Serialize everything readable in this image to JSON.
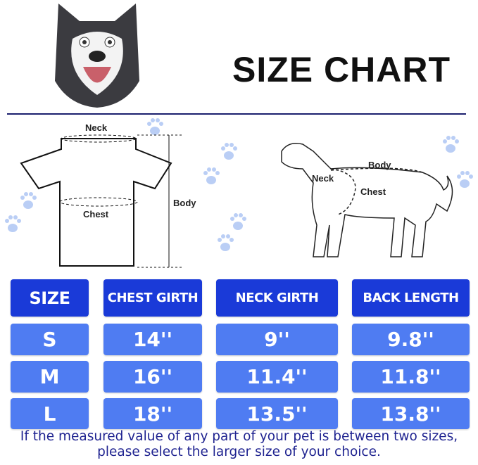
{
  "title": "SIZE CHART",
  "shirt_diagram": {
    "neck": "Neck",
    "chest": "Chest",
    "body": "Body"
  },
  "dog_diagram": {
    "neck": "Neck",
    "chest": "Chest",
    "body": "Body"
  },
  "table": {
    "headers": [
      "SIZE",
      "CHEST GIRTH",
      "NECK GIRTH",
      "BACK LENGTH"
    ],
    "rows": [
      [
        "S",
        "14''",
        "9''",
        "9.8''"
      ],
      [
        "M",
        "16''",
        "11.4''",
        "11.8''"
      ],
      [
        "L",
        "18''",
        "13.5''",
        "13.8''"
      ]
    ]
  },
  "note": "If the measured value of any part of your pet is between two sizes, please select the larger size of your choice.",
  "colors": {
    "header": "#1a3ad8",
    "row": "#4f7cf2",
    "note": "#1f2390",
    "paw": "#8fb0f0"
  }
}
